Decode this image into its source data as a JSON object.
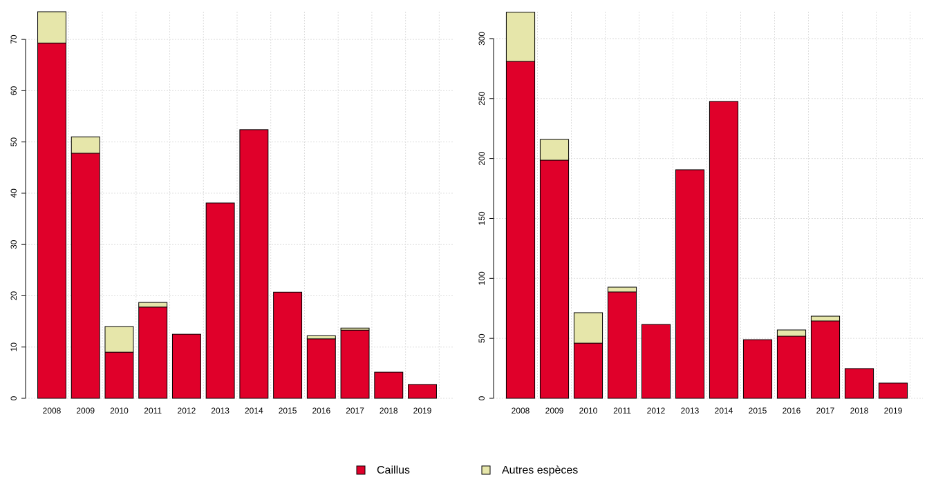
{
  "chart_data": [
    {
      "type": "bar",
      "stacked": true,
      "categories": [
        "2008",
        "2009",
        "2010",
        "2011",
        "2012",
        "2013",
        "2014",
        "2015",
        "2016",
        "2017",
        "2018",
        "2019"
      ],
      "series": [
        {
          "name": "Caillus",
          "color": "#e0002a",
          "values": [
            69.3,
            47.8,
            9.0,
            17.8,
            12.5,
            38.1,
            52.4,
            20.7,
            11.6,
            13.3,
            5.1,
            2.7
          ]
        },
        {
          "name": "Autres espèces",
          "color": "#e6e6aa",
          "values": [
            6.1,
            3.2,
            5.0,
            0.9,
            0,
            0,
            0,
            0,
            0.6,
            0.4,
            0,
            0
          ]
        }
      ],
      "ylim": [
        0,
        75.4
      ],
      "yticks": [
        0,
        10,
        20,
        30,
        40,
        50,
        60,
        70
      ],
      "grid": true
    },
    {
      "type": "bar",
      "stacked": true,
      "categories": [
        "2008",
        "2009",
        "2010",
        "2011",
        "2012",
        "2013",
        "2014",
        "2015",
        "2016",
        "2017",
        "2018",
        "2019"
      ],
      "series": [
        {
          "color": "#e0002a",
          "values": [
            281,
            198.6,
            46,
            88.7,
            61.6,
            190.6,
            247.6,
            48.9,
            51.8,
            64.5,
            24.8,
            12.7
          ]
        },
        {
          "color": "#e6e6aa",
          "values": [
            41,
            17.3,
            25.4,
            4,
            0,
            0,
            0,
            0,
            5.2,
            4,
            0,
            0
          ]
        }
      ],
      "ylim": [
        0,
        322.4
      ],
      "yticks": [
        0,
        50,
        100,
        150,
        200,
        250,
        300
      ],
      "grid": true
    }
  ]
}
